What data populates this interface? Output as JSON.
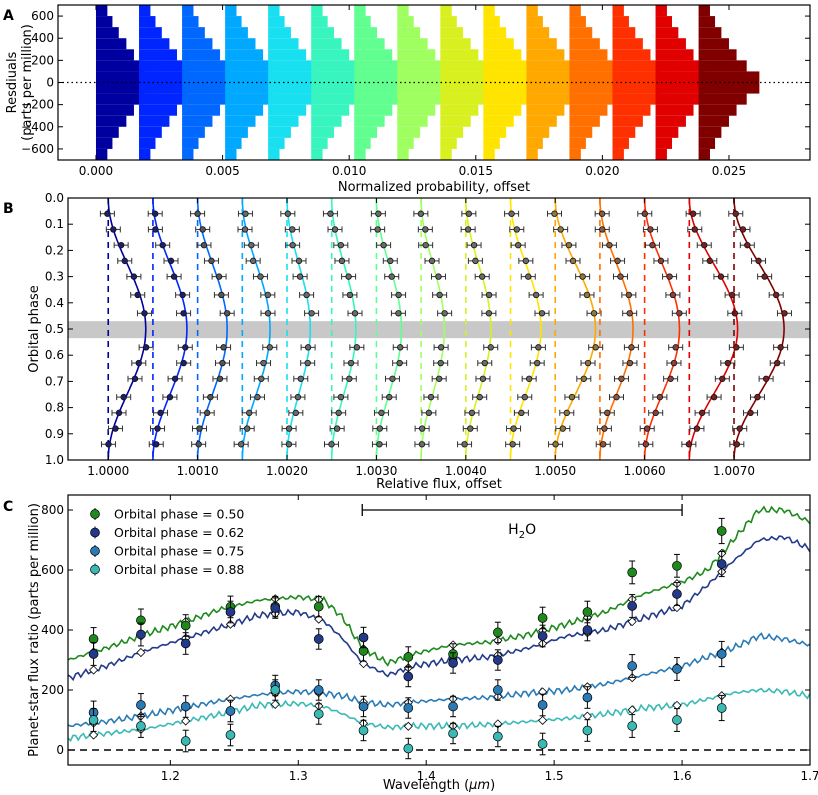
{
  "chart_data": [
    {
      "panel": "A",
      "type": "histogram",
      "ylabel_lines": [
        "Resdiuals",
        "(parts per million)"
      ],
      "xlabel": "Normalized probability, offset",
      "xlim": [
        -0.0015,
        0.0282
      ],
      "ylim": [
        -700,
        700
      ],
      "xticks": [
        "0.000",
        "0.005",
        "0.010",
        "0.015",
        "0.020",
        "0.025"
      ],
      "xtick_values": [
        0,
        0.005,
        0.01,
        0.015,
        0.02,
        0.025
      ],
      "yticks": [
        "600",
        "400",
        "200",
        "0",
        "−200",
        "−400",
        "−600"
      ],
      "ytick_values": [
        600,
        400,
        200,
        0,
        -200,
        -400,
        -600
      ],
      "zero_line": "dotted",
      "bin_edges_ppm": [
        -700,
        -600,
        -500,
        -400,
        -300,
        -200,
        -100,
        0,
        100,
        200,
        300,
        400,
        500,
        600,
        700
      ],
      "bin_probabilities": [
        0.00045,
        0.00065,
        0.0009,
        0.0012,
        0.0015,
        0.0019,
        0.0024,
        0.0024,
        0.0019,
        0.0015,
        0.0012,
        0.0009,
        0.00065,
        0.00045
      ],
      "histogram_offsets": [
        0.0,
        0.0017,
        0.0034,
        0.0051,
        0.0068,
        0.0085,
        0.0102,
        0.0119,
        0.0136,
        0.0153,
        0.017,
        0.0187,
        0.0204,
        0.0221,
        0.0238
      ],
      "colors": [
        "#0000a0",
        "#0025ff",
        "#0068ff",
        "#00a8ff",
        "#19e0f0",
        "#38f5c0",
        "#60ff90",
        "#a0ff60",
        "#d8f020",
        "#ffe400",
        "#ffa800",
        "#ff7000",
        "#ff3000",
        "#e00000",
        "#800000"
      ]
    },
    {
      "panel": "B",
      "type": "phase_curves",
      "ylabel": "Orbital phase",
      "xlabel": "Relative flux, offset",
      "xlim": [
        0.99955,
        1.00785
      ],
      "ylim": [
        1.0,
        0.0
      ],
      "xticks": [
        "1.0000",
        "1.0010",
        "1.0020",
        "1.0030",
        "1.0040",
        "1.0050",
        "1.0060",
        "1.0070"
      ],
      "xtick_values": [
        1.0,
        1.001,
        1.002,
        1.003,
        1.004,
        1.005,
        1.006,
        1.007
      ],
      "yticks": [
        "0.0",
        "0.1",
        "0.2",
        "0.3",
        "0.4",
        "0.5",
        "0.6",
        "0.7",
        "0.8",
        "0.9",
        "1.0"
      ],
      "ytick_values": [
        0.0,
        0.1,
        0.2,
        0.3,
        0.4,
        0.5,
        0.6,
        0.7,
        0.8,
        0.9,
        1.0
      ],
      "eclipse_band_phase": [
        0.47,
        0.535
      ],
      "series_offset_step": 0.0005,
      "series_amplitudes": [
        0.00042,
        0.00038,
        0.00033,
        0.00031,
        0.00026,
        0.00027,
        0.00028,
        0.00026,
        0.00028,
        0.00034,
        0.00045,
        0.00037,
        0.00039,
        0.00054,
        0.00056
      ],
      "phase_points": [
        0.06,
        0.12,
        0.18,
        0.24,
        0.3,
        0.37,
        0.44,
        0.57,
        0.63,
        0.69,
        0.76,
        0.82,
        0.88,
        0.94
      ],
      "colors": [
        "#0000a0",
        "#0025ff",
        "#0068ff",
        "#00a8ff",
        "#19e0f0",
        "#38f5c0",
        "#60ff90",
        "#a0ff60",
        "#d8f020",
        "#ffe400",
        "#ffa800",
        "#ff7000",
        "#ff3000",
        "#e00000",
        "#800000"
      ],
      "marker_colors": [
        "#1f1f6e",
        "#1f1f6e",
        "#555555",
        "#6a6a6a",
        "#6a6a6a",
        "#6a6a6a",
        "#6a6a6a",
        "#6a6a6a",
        "#6a6a6a",
        "#6a6a6a",
        "#8a7a40",
        "#8a5a40",
        "#8a4040",
        "#7a2020",
        "#7a2020"
      ]
    },
    {
      "panel": "C",
      "type": "spectrum",
      "ylabel": "Planet-star flux ratio (parts per million)",
      "xlabel_main": "Wavelength (",
      "xlabel_unit": "μm",
      "xlabel_end": ")",
      "xlim": [
        1.12,
        1.7
      ],
      "ylim": [
        -50,
        850
      ],
      "xticks": [
        "1.2",
        "1.3",
        "1.4",
        "1.5",
        "1.6",
        "1.7"
      ],
      "xtick_values": [
        1.2,
        1.3,
        1.4,
        1.5,
        1.6,
        1.7
      ],
      "yticks": [
        "0",
        "200",
        "400",
        "600",
        "800"
      ],
      "ytick_values": [
        0,
        200,
        400,
        600,
        800
      ],
      "annotation_main": "H",
      "annotation_sub": "2",
      "annotation_end": "O",
      "annotation_range": [
        1.35,
        1.6
      ],
      "annotation_y": 800,
      "wavelengths": [
        1.14,
        1.177,
        1.212,
        1.247,
        1.282,
        1.316,
        1.351,
        1.386,
        1.421,
        1.456,
        1.491,
        1.526,
        1.561,
        1.596,
        1.631
      ],
      "series": [
        {
          "name": "Orbital phase = 0.50",
          "color": "#1e8a1e",
          "values": [
            370,
            432,
            415,
            477,
            478,
            478,
            330,
            310,
            320,
            392,
            440,
            460,
            592,
            614,
            730
          ],
          "errors": [
            38,
            38,
            36,
            36,
            34,
            34,
            34,
            34,
            34,
            34,
            36,
            36,
            38,
            38,
            42
          ],
          "model_x": [
            1.12,
            1.15,
            1.18,
            1.21,
            1.24,
            1.27,
            1.3,
            1.32,
            1.335,
            1.35,
            1.37,
            1.39,
            1.42,
            1.45,
            1.48,
            1.51,
            1.54,
            1.57,
            1.6,
            1.62,
            1.64,
            1.66,
            1.68,
            1.7
          ],
          "model_y": [
            300,
            340,
            385,
            425,
            470,
            500,
            510,
            500,
            440,
            340,
            290,
            320,
            350,
            360,
            385,
            420,
            460,
            520,
            560,
            600,
            700,
            800,
            800,
            760
          ]
        },
        {
          "name": "Orbital phase = 0.62",
          "color": "#233a8a",
          "values": [
            320,
            385,
            355,
            460,
            473,
            370,
            375,
            245,
            290,
            300,
            380,
            400,
            480,
            520,
            620
          ],
          "errors": [
            38,
            38,
            36,
            36,
            34,
            34,
            34,
            34,
            34,
            34,
            36,
            36,
            38,
            38,
            42
          ],
          "model_x": [
            1.12,
            1.15,
            1.18,
            1.21,
            1.24,
            1.27,
            1.3,
            1.32,
            1.335,
            1.35,
            1.37,
            1.39,
            1.42,
            1.45,
            1.48,
            1.51,
            1.54,
            1.57,
            1.6,
            1.62,
            1.64,
            1.66,
            1.68,
            1.7
          ],
          "model_y": [
            240,
            280,
            330,
            370,
            410,
            450,
            460,
            430,
            370,
            290,
            250,
            280,
            300,
            310,
            340,
            380,
            400,
            440,
            480,
            550,
            630,
            700,
            710,
            670
          ]
        },
        {
          "name": "Orbital phase = 0.75",
          "color": "#2a7ab5",
          "values": [
            125,
            150,
            145,
            130,
            215,
            200,
            145,
            140,
            145,
            200,
            150,
            175,
            280,
            270,
            320
          ],
          "errors": [
            38,
            38,
            36,
            36,
            34,
            34,
            34,
            34,
            34,
            34,
            36,
            36,
            38,
            38,
            42
          ],
          "model_x": [
            1.12,
            1.15,
            1.18,
            1.21,
            1.24,
            1.27,
            1.3,
            1.32,
            1.335,
            1.35,
            1.37,
            1.39,
            1.42,
            1.45,
            1.48,
            1.51,
            1.54,
            1.57,
            1.6,
            1.62,
            1.64,
            1.66,
            1.68,
            1.7
          ],
          "model_y": [
            80,
            95,
            115,
            140,
            165,
            185,
            195,
            190,
            180,
            160,
            150,
            160,
            170,
            175,
            190,
            200,
            220,
            250,
            280,
            310,
            340,
            380,
            370,
            350
          ]
        },
        {
          "name": "Orbital phase = 0.88",
          "color": "#3ab9b5",
          "values": [
            100,
            80,
            30,
            50,
            200,
            120,
            65,
            5,
            55,
            45,
            20,
            65,
            80,
            100,
            140
          ],
          "errors": [
            38,
            38,
            36,
            36,
            34,
            34,
            34,
            34,
            34,
            34,
            36,
            36,
            38,
            38,
            42
          ],
          "model_x": [
            1.12,
            1.15,
            1.18,
            1.21,
            1.24,
            1.27,
            1.3,
            1.32,
            1.335,
            1.35,
            1.37,
            1.39,
            1.42,
            1.45,
            1.48,
            1.51,
            1.54,
            1.57,
            1.6,
            1.62,
            1.64,
            1.66,
            1.68,
            1.7
          ],
          "model_y": [
            40,
            55,
            70,
            95,
            120,
            150,
            155,
            145,
            120,
            90,
            75,
            80,
            80,
            85,
            95,
            105,
            120,
            140,
            150,
            170,
            190,
            200,
            195,
            180
          ]
        }
      ],
      "zero_line": "dashed"
    }
  ]
}
